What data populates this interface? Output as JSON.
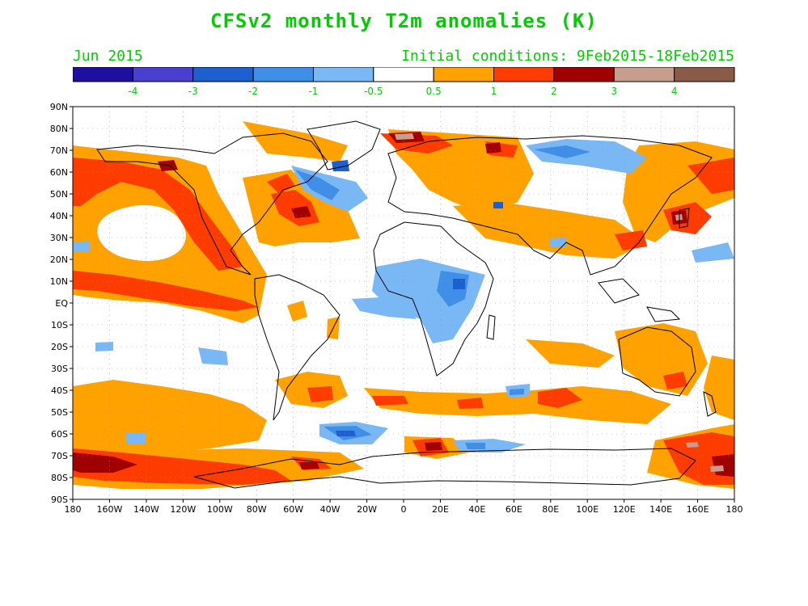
{
  "title": "CFSv2 monthly T2m anomalies (K)",
  "valid_month": "Jun 2015",
  "initial_conditions": "Initial conditions: 9Feb2015-18Feb2015",
  "text_color": "#00cc00",
  "colorbar": {
    "colors": [
      "#1f0fa0",
      "#4a3ed0",
      "#1e5fd0",
      "#3f8ee8",
      "#7ab8f5",
      "#ffffff",
      "#ffa200",
      "#ff3c00",
      "#a00000",
      "#c79e8e",
      "#8a5a48"
    ],
    "labels": [
      "-4",
      "-3",
      "-2",
      "-1",
      "-0.5",
      "0.5",
      "1",
      "2",
      "3",
      "4"
    ]
  },
  "axes": {
    "lat_labels": [
      "90N",
      "80N",
      "70N",
      "60N",
      "50N",
      "40N",
      "30N",
      "20N",
      "10N",
      "EQ",
      "10S",
      "20S",
      "30S",
      "40S",
      "50S",
      "60S",
      "70S",
      "80S",
      "90S"
    ],
    "lon_labels": [
      "180",
      "160W",
      "140W",
      "120W",
      "100W",
      "80W",
      "60W",
      "40W",
      "20W",
      "0",
      "20E",
      "40E",
      "60E",
      "80E",
      "100E",
      "120E",
      "140E",
      "160E",
      "180"
    ]
  }
}
